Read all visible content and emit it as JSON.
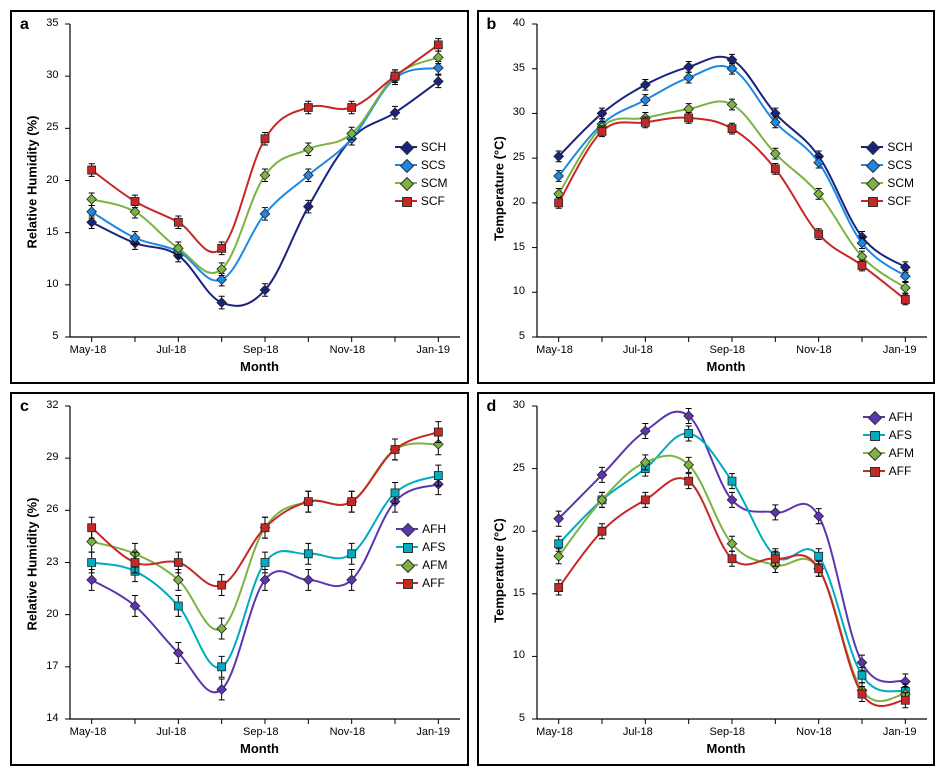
{
  "global": {
    "x_categories": [
      "May-18",
      "",
      "Jul-18",
      "",
      "Sep-18",
      "",
      "Nov-18",
      "",
      "Jan-19"
    ],
    "x_label": "Month",
    "err_bar_half": 0.6,
    "line_width": 2,
    "marker_size": 8,
    "font": {
      "axis_label_pt": 13,
      "tick_pt": 11,
      "panel_letter_pt": 16,
      "legend_pt": 12
    }
  },
  "series_colors": {
    "SCH": "#1a237e",
    "SCS": "#1e88e5",
    "SCM": "#7cb342",
    "SCF": "#c62828",
    "AFH": "#5e35b1",
    "AFS": "#00acc1",
    "AFM": "#7cb342",
    "AFF": "#c62828"
  },
  "markers": {
    "SCH": "diamond",
    "SCS": "diamond",
    "SCM": "diamond",
    "SCF": "square",
    "AFH": "diamond",
    "AFS": "square",
    "AFM": "diamond",
    "AFF": "square"
  },
  "panels": {
    "a": {
      "letter": "a",
      "y_label": "Relative Humidity (%)",
      "ylim": [
        5,
        35
      ],
      "ytick_step": 5,
      "legend_pos": "right-middle",
      "series_order": [
        "SCH",
        "SCS",
        "SCM",
        "SCF"
      ],
      "data": {
        "SCH": [
          16.0,
          14.0,
          12.8,
          8.3,
          9.5,
          17.5,
          24.0,
          26.5,
          29.5
        ],
        "SCS": [
          17.0,
          14.5,
          13.2,
          10.5,
          16.8,
          20.5,
          24.0,
          29.8,
          30.8
        ],
        "SCM": [
          18.2,
          17.0,
          13.5,
          11.5,
          20.5,
          23.0,
          24.5,
          30.0,
          31.8
        ],
        "SCF": [
          21.0,
          18.0,
          16.0,
          13.5,
          24.0,
          27.0,
          27.0,
          30.0,
          33.0
        ]
      }
    },
    "b": {
      "letter": "b",
      "y_label": "Temperature (°C)",
      "ylim": [
        5,
        40
      ],
      "ytick_step": 5,
      "legend_pos": "right-middle",
      "series_order": [
        "SCH",
        "SCS",
        "SCM",
        "SCF"
      ],
      "data": {
        "SCH": [
          25.2,
          30.0,
          33.2,
          35.2,
          36.0,
          30.0,
          25.2,
          16.2,
          12.8
        ],
        "SCS": [
          23.0,
          28.8,
          31.5,
          34.0,
          35.0,
          29.0,
          24.5,
          15.5,
          11.8
        ],
        "SCM": [
          21.0,
          28.5,
          29.5,
          30.5,
          31.0,
          25.5,
          21.0,
          14.0,
          10.5
        ],
        "SCF": [
          20.0,
          28.0,
          29.0,
          29.5,
          28.3,
          23.8,
          16.5,
          13.0,
          9.2
        ]
      }
    },
    "c": {
      "letter": "c",
      "y_label": "Relative Humidity (%)",
      "ylim": [
        14,
        32
      ],
      "ytick_step": 3,
      "legend_pos": "right-middle",
      "series_order": [
        "AFH",
        "AFS",
        "AFM",
        "AFF"
      ],
      "data": {
        "AFH": [
          22.0,
          20.5,
          17.8,
          15.7,
          22.0,
          22.0,
          22.0,
          26.5,
          27.5
        ],
        "AFS": [
          23.0,
          22.5,
          20.5,
          17.0,
          23.0,
          23.5,
          23.5,
          27.0,
          28.0
        ],
        "AFM": [
          24.2,
          23.5,
          22.0,
          19.2,
          25.0,
          26.5,
          26.5,
          29.5,
          29.8
        ],
        "AFF": [
          25.0,
          23.0,
          23.0,
          21.7,
          25.0,
          26.5,
          26.5,
          29.5,
          30.5
        ]
      }
    },
    "d": {
      "letter": "d",
      "y_label": "Temperature (°C)",
      "ylim": [
        5,
        30
      ],
      "ytick_step": 5,
      "legend_pos": "top-right",
      "series_order": [
        "AFH",
        "AFS",
        "AFM",
        "AFF"
      ],
      "data": {
        "AFH": [
          21.0,
          24.5,
          28.0,
          29.2,
          22.5,
          21.5,
          21.2,
          9.5,
          8.0
        ],
        "AFS": [
          19.0,
          22.5,
          25.0,
          27.8,
          24.0,
          18.0,
          18.0,
          8.5,
          7.2
        ],
        "AFM": [
          18.0,
          22.5,
          25.5,
          25.3,
          19.0,
          17.3,
          17.0,
          7.3,
          7.0
        ],
        "AFF": [
          15.5,
          20.0,
          22.5,
          24.0,
          17.8,
          17.8,
          17.0,
          7.0,
          6.5
        ]
      }
    }
  }
}
